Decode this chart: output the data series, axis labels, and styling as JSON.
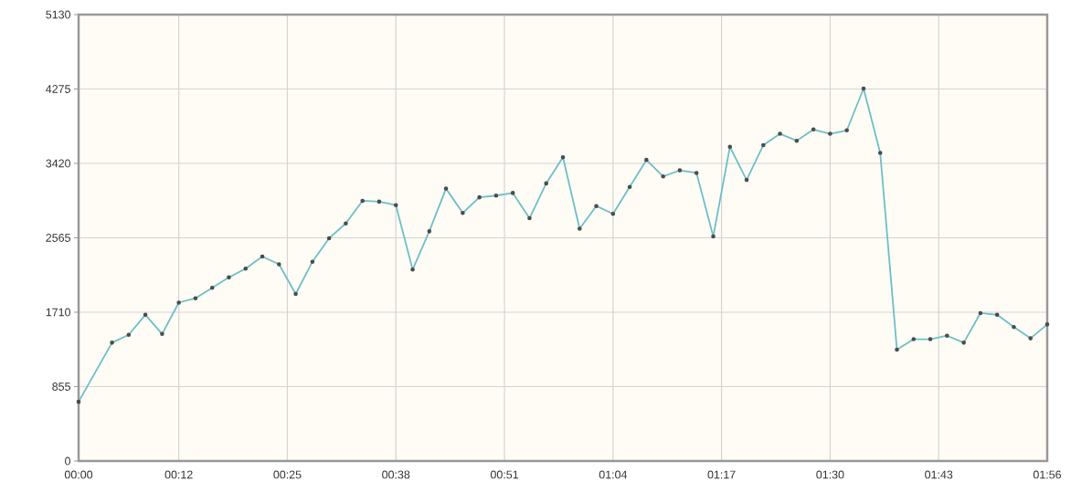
{
  "chart_data": {
    "type": "line",
    "x": [
      0,
      0.0667,
      0.1,
      0.1333,
      0.1667,
      0.2,
      0.2333,
      0.2667,
      0.3,
      0.3333,
      0.3667,
      0.4,
      0.4333,
      0.4667,
      0.5,
      0.5333,
      0.5667,
      0.6,
      0.6333,
      0.6667,
      0.7,
      0.7333,
      0.7667,
      0.8,
      0.8333,
      0.8667,
      0.9,
      0.9333,
      0.9667,
      1.0,
      1.0333,
      1.0667,
      1.1,
      1.1333,
      1.1667,
      1.2,
      1.2333,
      1.2667,
      1.3,
      1.3333,
      1.3667,
      1.4,
      1.4333,
      1.4667,
      1.5,
      1.5333,
      1.5667,
      1.6,
      1.6333,
      1.6667,
      1.7,
      1.7333,
      1.7667,
      1.8,
      1.8333,
      1.8667,
      1.9,
      1.9333
    ],
    "values": [
      680,
      1360,
      1450,
      1680,
      1460,
      1820,
      1870,
      1990,
      2110,
      2210,
      2350,
      2260,
      1920,
      2290,
      2560,
      2730,
      2990,
      2980,
      2940,
      2200,
      2640,
      3130,
      2850,
      3030,
      3050,
      3080,
      2790,
      3190,
      3490,
      2670,
      2930,
      2840,
      3150,
      3460,
      3270,
      3340,
      3310,
      2580,
      3610,
      3230,
      3630,
      3760,
      3680,
      3810,
      3760,
      3800,
      4280,
      3540,
      1280,
      1400,
      1400,
      1440,
      1360,
      1700,
      1680,
      1540,
      1410,
      1570
    ],
    "color": "#6dbfc8",
    "xlim": [
      0,
      1.9333
    ],
    "xticks": [
      {
        "value": 0,
        "label": "00:00"
      },
      {
        "value": 0.2,
        "label": "00:12"
      },
      {
        "value": 0.4167,
        "label": "00:25"
      },
      {
        "value": 0.6333,
        "label": "00:38"
      },
      {
        "value": 0.85,
        "label": "00:51"
      },
      {
        "value": 1.0667,
        "label": "01:04"
      },
      {
        "value": 1.2833,
        "label": "01:17"
      },
      {
        "value": 1.5,
        "label": "01:30"
      },
      {
        "value": 1.7167,
        "label": "01:43"
      },
      {
        "value": 1.9333,
        "label": "01:56"
      }
    ],
    "ylim": [
      0,
      5130
    ],
    "yticks": [
      0,
      855,
      1710,
      2565,
      3420,
      4275,
      5130
    ],
    "grid": true,
    "marker": "circle",
    "line_style": "solid"
  }
}
